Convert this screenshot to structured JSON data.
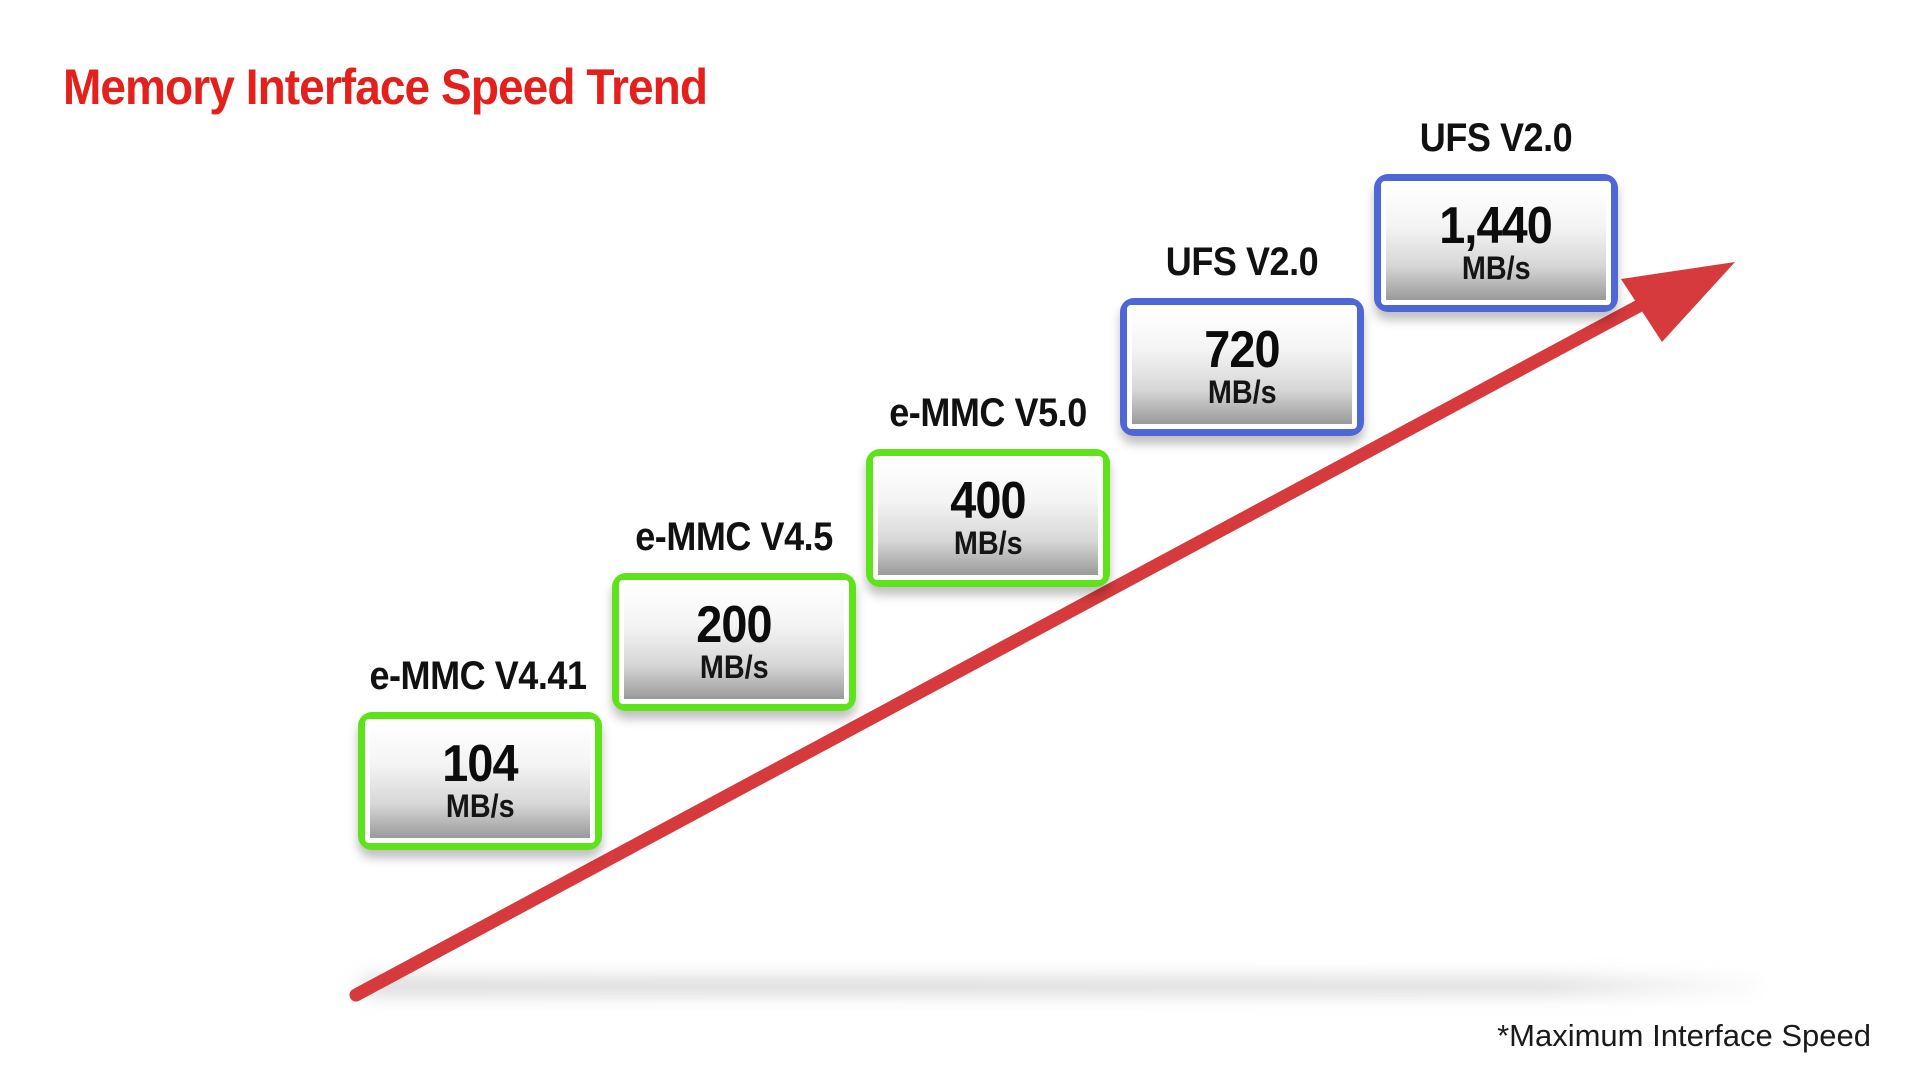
{
  "chart_data": {
    "type": "bar",
    "title": "Memory Interface Speed Trend",
    "categories": [
      "e-MMC V4.41",
      "e-MMC V4.5",
      "e-MMC V5.0",
      "UFS V2.0",
      "UFS V2.0"
    ],
    "values": [
      104,
      200,
      400,
      720,
      1440
    ],
    "value_labels": [
      "104",
      "200",
      "400",
      "720",
      "1,440"
    ],
    "unit": "MB/s",
    "families": [
      "e-MMC",
      "e-MMC",
      "e-MMC",
      "UFS",
      "UFS"
    ],
    "footnote": "*Maximum Interface Speed"
  },
  "colors": {
    "title": "#e3201b",
    "emmc_border": "#5ee21a",
    "ufs_border": "#4f67d6",
    "trend_arrow": "#d63a3c",
    "text": "#111111"
  }
}
